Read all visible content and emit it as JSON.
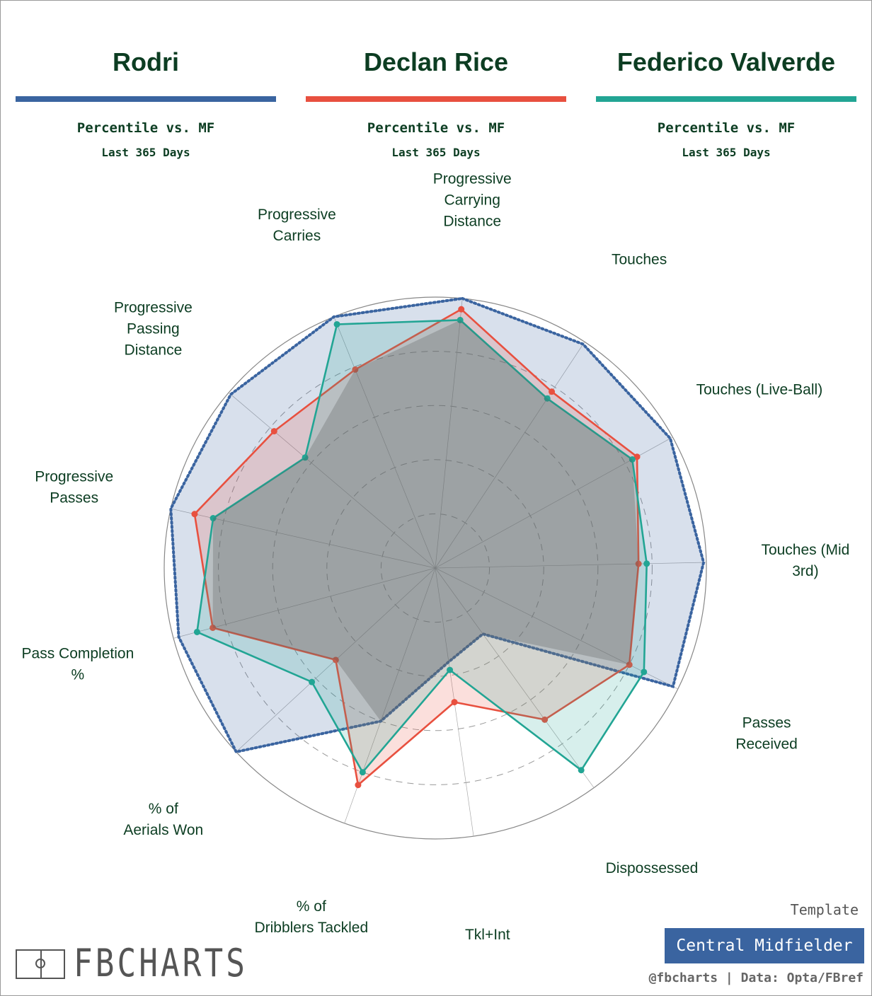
{
  "players": [
    {
      "name": "Rodri",
      "color": "#3a64a0",
      "subtitle": "Percentile vs. MF",
      "period": "Last 365 Days"
    },
    {
      "name": "Declan Rice",
      "color": "#e8503f",
      "subtitle": "Percentile vs. MF",
      "period": "Last 365 Days"
    },
    {
      "name": "Federico Valverde",
      "color": "#22a594",
      "subtitle": "Percentile vs. MF",
      "period": "Last 365 Days"
    }
  ],
  "chart_data": {
    "type": "radar",
    "scale": [
      0,
      100
    ],
    "rings": [
      20,
      40,
      60,
      80,
      100
    ],
    "categories": [
      "Progressive Carrying Distance",
      "Touches",
      "Touches (Live-Ball)",
      "Touches (Mid 3rd)",
      "Passes Received",
      "Dispossessed",
      "Tkl+Int",
      "% of Dribblers Tackled",
      "% of Aerials Won",
      "Pass Completion %",
      "Progressive Passes",
      "Progressive Passing Distance",
      "Progressive Carries"
    ],
    "series": [
      {
        "name": "Rodri",
        "color": "#3a64a0",
        "style": "dotted",
        "values": [
          100,
          99,
          99,
          99,
          98,
          30,
          35,
          60,
          100,
          98,
          100,
          99,
          100
        ]
      },
      {
        "name": "Declan Rice",
        "color": "#e8503f",
        "style": "solid",
        "values": [
          96,
          78,
          85,
          75,
          80,
          69,
          50,
          85,
          50,
          85,
          91,
          78,
          79
        ]
      },
      {
        "name": "Federico Valverde",
        "color": "#22a594",
        "style": "solid",
        "values": [
          92,
          75,
          83,
          78,
          86,
          92,
          38,
          80,
          62,
          91,
          84,
          63,
          97
        ]
      }
    ]
  },
  "branding": {
    "logo_text": "FBCHARTS",
    "template_label": "Template",
    "template_name": "Central Midfielder",
    "credit": "@fbcharts | Data: Opta/FBref"
  }
}
